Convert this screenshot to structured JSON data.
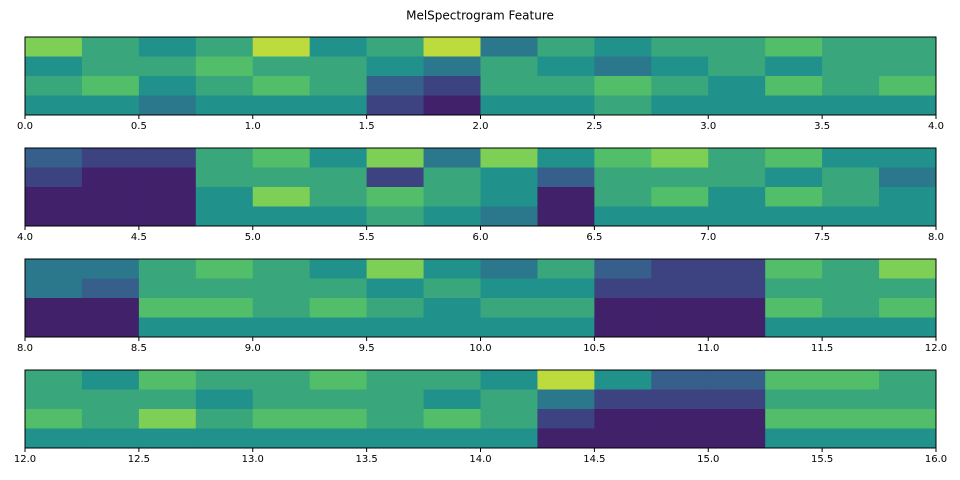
{
  "title": "MelSpectrogram Feature",
  "chart_data": [
    {
      "type": "heatmap",
      "xlim": [
        0,
        4
      ],
      "xticks": [
        {
          "value": 0,
          "label": "0.0"
        },
        0.5,
        {
          "value": 1,
          "label": "1.0"
        },
        1.5,
        {
          "value": 2,
          "label": "2.0"
        },
        2.5,
        {
          "value": 3,
          "label": "3.0"
        },
        3.5,
        {
          "value": 4,
          "label": "4.0"
        }
      ],
      "values": [
        [
          0.8,
          0.6,
          0.5,
          0.6,
          0.9,
          0.5,
          0.6,
          0.9,
          0.4,
          0.6,
          0.5,
          0.6,
          0.6,
          0.7,
          0.6,
          0.6
        ],
        [
          0.5,
          0.6,
          0.6,
          0.7,
          0.6,
          0.6,
          0.5,
          0.4,
          0.6,
          0.5,
          0.4,
          0.5,
          0.6,
          0.5,
          0.6,
          0.6
        ],
        [
          0.6,
          0.7,
          0.5,
          0.6,
          0.7,
          0.6,
          0.3,
          0.2,
          0.6,
          0.6,
          0.7,
          0.6,
          0.5,
          0.7,
          0.6,
          0.7
        ],
        [
          0.5,
          0.5,
          0.4,
          0.5,
          0.5,
          0.5,
          0.2,
          0.1,
          0.5,
          0.5,
          0.6,
          0.5,
          0.5,
          0.5,
          0.5,
          0.5
        ]
      ]
    },
    {
      "type": "heatmap",
      "xlim": [
        4,
        8
      ],
      "xticks": [
        {
          "value": 4,
          "label": "4.0"
        },
        4.5,
        {
          "value": 5,
          "label": "5.0"
        },
        5.5,
        {
          "value": 6,
          "label": "6.0"
        },
        6.5,
        {
          "value": 7,
          "label": "7.0"
        },
        7.5,
        {
          "value": 8,
          "label": "8.0"
        }
      ],
      "values": [
        [
          0.3,
          0.2,
          0.2,
          0.6,
          0.7,
          0.5,
          0.8,
          0.4,
          0.8,
          0.5,
          0.7,
          0.8,
          0.6,
          0.7,
          0.5,
          0.5
        ],
        [
          0.2,
          0.1,
          0.1,
          0.6,
          0.6,
          0.6,
          0.2,
          0.6,
          0.5,
          0.3,
          0.6,
          0.6,
          0.6,
          0.5,
          0.6,
          0.4
        ],
        [
          0.1,
          0.1,
          0.1,
          0.5,
          0.8,
          0.6,
          0.7,
          0.6,
          0.5,
          0.1,
          0.6,
          0.7,
          0.5,
          0.7,
          0.6,
          0.5
        ],
        [
          0.1,
          0.1,
          0.1,
          0.5,
          0.5,
          0.5,
          0.6,
          0.5,
          0.4,
          0.1,
          0.5,
          0.5,
          0.5,
          0.5,
          0.5,
          0.5
        ]
      ]
    },
    {
      "type": "heatmap",
      "xlim": [
        8,
        12
      ],
      "xticks": [
        {
          "value": 8,
          "label": "8.0"
        },
        8.5,
        {
          "value": 9,
          "label": "9.0"
        },
        9.5,
        {
          "value": 10,
          "label": "10.0"
        },
        10.5,
        {
          "value": 11,
          "label": "11.0"
        },
        11.5,
        {
          "value": 12,
          "label": "12.0"
        }
      ],
      "values": [
        [
          0.4,
          0.4,
          0.6,
          0.7,
          0.6,
          0.5,
          0.8,
          0.5,
          0.4,
          0.6,
          0.3,
          0.2,
          0.2,
          0.7,
          0.6,
          0.8
        ],
        [
          0.4,
          0.3,
          0.6,
          0.6,
          0.6,
          0.6,
          0.5,
          0.6,
          0.5,
          0.5,
          0.2,
          0.2,
          0.2,
          0.6,
          0.6,
          0.6
        ],
        [
          0.1,
          0.1,
          0.7,
          0.7,
          0.6,
          0.7,
          0.6,
          0.5,
          0.6,
          0.6,
          0.1,
          0.1,
          0.1,
          0.7,
          0.6,
          0.7
        ],
        [
          0.1,
          0.1,
          0.5,
          0.5,
          0.5,
          0.5,
          0.5,
          0.5,
          0.5,
          0.5,
          0.1,
          0.1,
          0.1,
          0.5,
          0.5,
          0.5
        ]
      ]
    },
    {
      "type": "heatmap",
      "xlim": [
        12,
        16
      ],
      "xticks": [
        {
          "value": 12,
          "label": "12.0"
        },
        12.5,
        {
          "value": 13,
          "label": "13.0"
        },
        13.5,
        {
          "value": 14,
          "label": "14.0"
        },
        14.5,
        {
          "value": 15,
          "label": "15.0"
        },
        15.5,
        {
          "value": 16,
          "label": "16.0"
        }
      ],
      "values": [
        [
          0.6,
          0.5,
          0.7,
          0.6,
          0.6,
          0.7,
          0.6,
          0.6,
          0.5,
          0.9,
          0.5,
          0.3,
          0.3,
          0.7,
          0.7,
          0.6
        ],
        [
          0.6,
          0.6,
          0.6,
          0.5,
          0.6,
          0.6,
          0.6,
          0.5,
          0.6,
          0.4,
          0.2,
          0.2,
          0.2,
          0.6,
          0.6,
          0.6
        ],
        [
          0.7,
          0.6,
          0.8,
          0.6,
          0.7,
          0.7,
          0.6,
          0.7,
          0.6,
          0.2,
          0.1,
          0.1,
          0.1,
          0.7,
          0.7,
          0.7
        ],
        [
          0.5,
          0.5,
          0.5,
          0.5,
          0.5,
          0.5,
          0.5,
          0.5,
          0.5,
          0.1,
          0.1,
          0.1,
          0.1,
          0.5,
          0.5,
          0.5
        ]
      ]
    }
  ]
}
